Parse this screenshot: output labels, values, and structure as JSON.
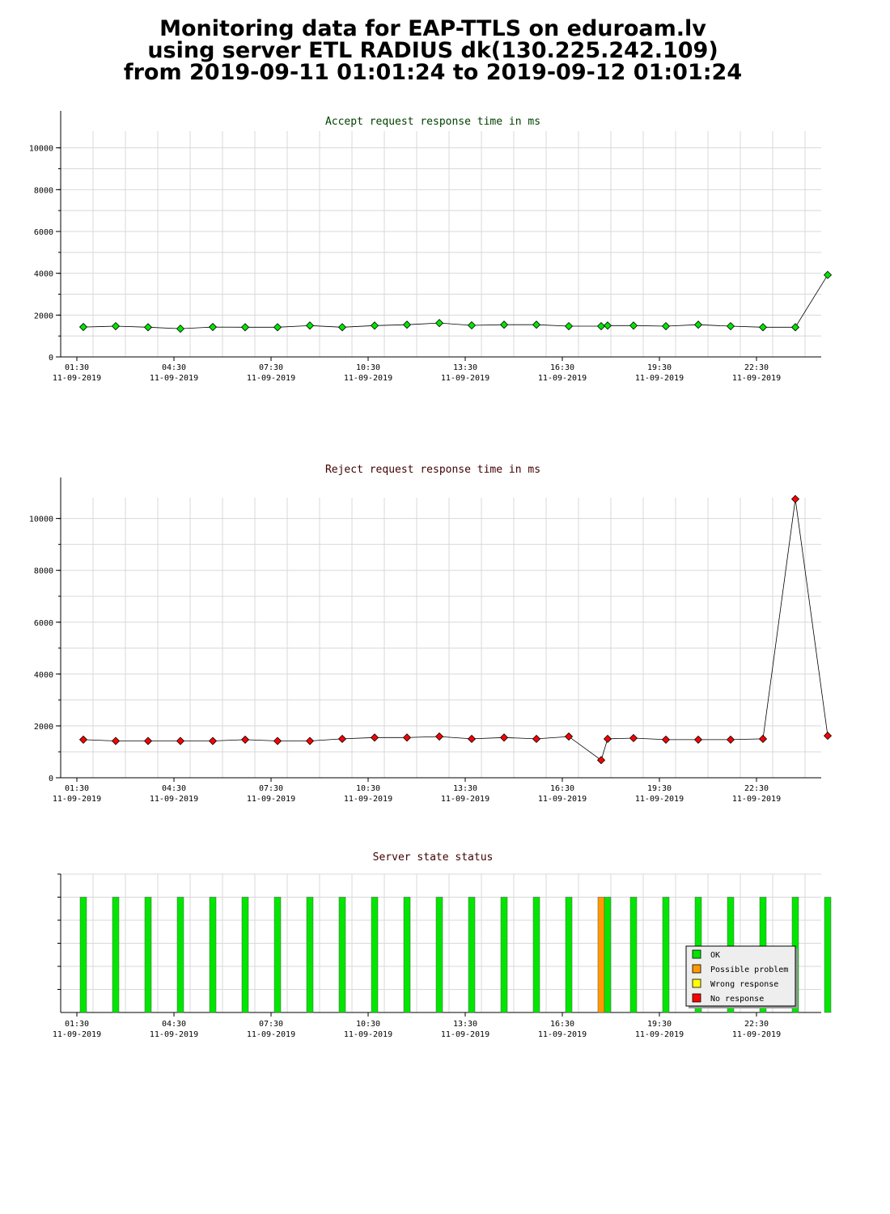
{
  "header": {
    "title_lines": [
      "Monitoring data for EAP-TTLS on eduroam.lv",
      "using server ETL RADIUS dk(130.225.242.109)",
      "from 2019-09-11 01:01:24 to 2019-09-12 01:01:24"
    ]
  },
  "colors": {
    "ok": "#00e600",
    "possible_problem": "#ff9900",
    "wrong_response": "#ffff00",
    "no_response": "#ff0000",
    "accept_title": "#004000",
    "reject_title": "#400000",
    "grid": "#d8d8d8"
  },
  "chart_data": [
    {
      "type": "line",
      "title": "Accept request response time in ms",
      "xlim": [
        1.0,
        24.5
      ],
      "ylim": [
        0,
        10800
      ],
      "yticks": [
        0,
        2000,
        4000,
        6000,
        8000,
        10000
      ],
      "xticks": [
        {
          "x": 1.5,
          "time": "01:30",
          "date": "11-09-2019"
        },
        {
          "x": 4.5,
          "time": "04:30",
          "date": "11-09-2019"
        },
        {
          "x": 7.5,
          "time": "07:30",
          "date": "11-09-2019"
        },
        {
          "x": 10.5,
          "time": "10:30",
          "date": "11-09-2019"
        },
        {
          "x": 13.5,
          "time": "13:30",
          "date": "11-09-2019"
        },
        {
          "x": 16.5,
          "time": "16:30",
          "date": "11-09-2019"
        },
        {
          "x": 19.5,
          "time": "19:30",
          "date": "11-09-2019"
        },
        {
          "x": 22.5,
          "time": "22:30",
          "date": "11-09-2019"
        }
      ],
      "point_color": "#00e600",
      "x": [
        1.7,
        2.7,
        3.7,
        4.7,
        5.7,
        6.7,
        7.7,
        8.7,
        9.7,
        10.7,
        11.7,
        12.7,
        13.7,
        14.7,
        15.7,
        16.7,
        17.7,
        17.9,
        18.7,
        19.7,
        20.7,
        21.7,
        22.7,
        23.7,
        24.7
      ],
      "y": [
        1430,
        1470,
        1420,
        1350,
        1430,
        1420,
        1420,
        1500,
        1420,
        1500,
        1540,
        1620,
        1510,
        1540,
        1540,
        1470,
        1470,
        1500,
        1500,
        1470,
        1540,
        1470,
        1420,
        1420,
        3920
      ]
    },
    {
      "type": "line",
      "title": "Reject request response time in ms",
      "xlim": [
        1.0,
        24.5
      ],
      "ylim": [
        0,
        10800
      ],
      "yticks": [
        0,
        2000,
        4000,
        6000,
        8000,
        10000
      ],
      "xticks": [
        {
          "x": 1.5,
          "time": "01:30",
          "date": "11-09-2019"
        },
        {
          "x": 4.5,
          "time": "04:30",
          "date": "11-09-2019"
        },
        {
          "x": 7.5,
          "time": "07:30",
          "date": "11-09-2019"
        },
        {
          "x": 10.5,
          "time": "10:30",
          "date": "11-09-2019"
        },
        {
          "x": 13.5,
          "time": "13:30",
          "date": "11-09-2019"
        },
        {
          "x": 16.5,
          "time": "16:30",
          "date": "11-09-2019"
        },
        {
          "x": 19.5,
          "time": "19:30",
          "date": "11-09-2019"
        },
        {
          "x": 22.5,
          "time": "22:30",
          "date": "11-09-2019"
        }
      ],
      "point_color": "#ff0000",
      "x": [
        1.7,
        2.7,
        3.7,
        4.7,
        5.7,
        6.7,
        7.7,
        8.7,
        9.7,
        10.7,
        11.7,
        12.7,
        13.7,
        14.7,
        15.7,
        16.7,
        17.7,
        17.9,
        18.7,
        19.7,
        20.7,
        21.7,
        22.7,
        23.7,
        24.7
      ],
      "y": [
        1470,
        1420,
        1420,
        1420,
        1420,
        1470,
        1420,
        1420,
        1500,
        1550,
        1550,
        1590,
        1500,
        1550,
        1500,
        1590,
        680,
        1500,
        1530,
        1470,
        1470,
        1470,
        1500,
        10750,
        1620
      ]
    },
    {
      "type": "bar",
      "title": "Server state status",
      "xlim": [
        1.0,
        24.5
      ],
      "xticks": [
        {
          "x": 1.5,
          "time": "01:30",
          "date": "11-09-2019"
        },
        {
          "x": 4.5,
          "time": "04:30",
          "date": "11-09-2019"
        },
        {
          "x": 7.5,
          "time": "07:30",
          "date": "11-09-2019"
        },
        {
          "x": 10.5,
          "time": "10:30",
          "date": "11-09-2019"
        },
        {
          "x": 13.5,
          "time": "13:30",
          "date": "11-09-2019"
        },
        {
          "x": 16.5,
          "time": "16:30",
          "date": "11-09-2019"
        },
        {
          "x": 19.5,
          "time": "19:30",
          "date": "11-09-2019"
        },
        {
          "x": 22.5,
          "time": "22:30",
          "date": "11-09-2019"
        }
      ],
      "x": [
        1.7,
        2.7,
        3.7,
        4.7,
        5.7,
        6.7,
        7.7,
        8.7,
        9.7,
        10.7,
        11.7,
        12.7,
        13.7,
        14.7,
        15.7,
        16.7,
        17.7,
        17.9,
        18.7,
        19.7,
        20.7,
        21.7,
        22.7,
        23.7,
        24.7
      ],
      "states": [
        "ok",
        "ok",
        "ok",
        "ok",
        "ok",
        "ok",
        "ok",
        "ok",
        "ok",
        "ok",
        "ok",
        "ok",
        "ok",
        "ok",
        "ok",
        "ok",
        "possible_problem",
        "ok",
        "ok",
        "ok",
        "ok",
        "ok",
        "ok",
        "ok",
        "ok"
      ],
      "legend": [
        {
          "key": "ok",
          "label": "OK"
        },
        {
          "key": "possible_problem",
          "label": "Possible problem"
        },
        {
          "key": "wrong_response",
          "label": "Wrong response"
        },
        {
          "key": "no_response",
          "label": "No response"
        }
      ],
      "legend_position": "bottom-right"
    }
  ]
}
